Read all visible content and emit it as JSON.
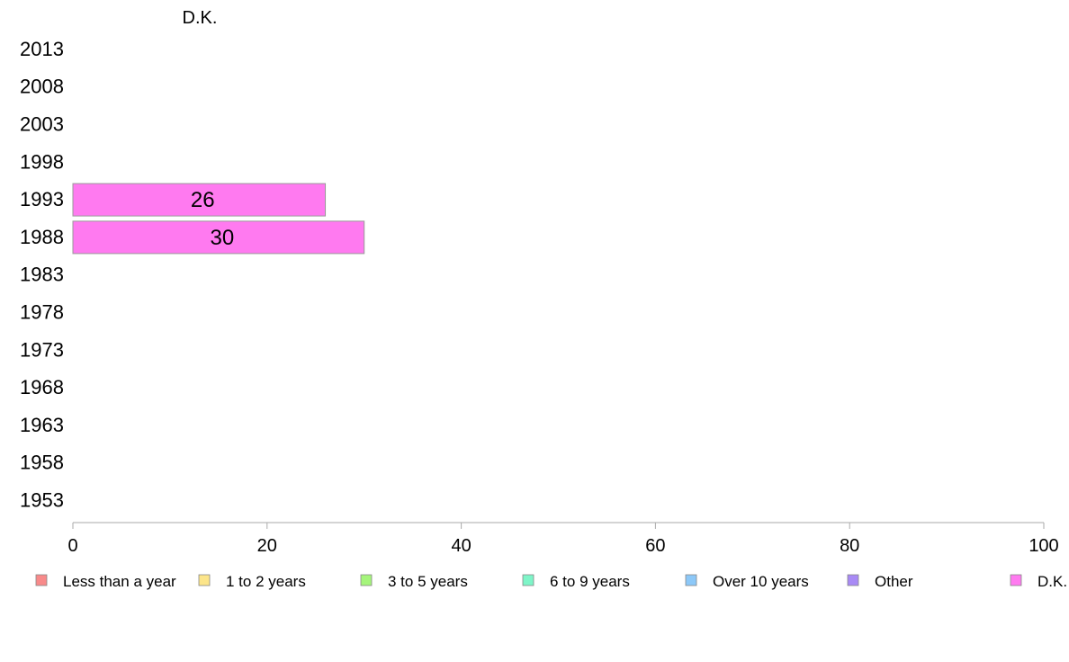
{
  "chart_data": {
    "type": "bar",
    "orientation": "horizontal",
    "stacked": true,
    "title": "D.K.",
    "categories": [
      "2013",
      "2008",
      "2003",
      "1998",
      "1993",
      "1988",
      "1983",
      "1978",
      "1973",
      "1968",
      "1963",
      "1958",
      "1953"
    ],
    "xlim": [
      0,
      100
    ],
    "x_ticks": [
      "0",
      "20",
      "40",
      "60",
      "80",
      "100"
    ],
    "grid": false,
    "legend_position": "bottom",
    "series": [
      {
        "name": "Less than a year",
        "color": "#f88a8a",
        "values": [
          null,
          null,
          null,
          null,
          null,
          null,
          null,
          null,
          null,
          null,
          null,
          null,
          null
        ]
      },
      {
        "name": "1 to 2 years",
        "color": "#fce58a",
        "values": [
          null,
          null,
          null,
          null,
          null,
          null,
          null,
          null,
          null,
          null,
          null,
          null,
          null
        ]
      },
      {
        "name": "3 to 5 years",
        "color": "#a5f57b",
        "values": [
          null,
          null,
          null,
          null,
          null,
          null,
          null,
          null,
          null,
          null,
          null,
          null,
          null
        ]
      },
      {
        "name": "6 to 9 years",
        "color": "#7ef5c8",
        "values": [
          null,
          null,
          null,
          null,
          null,
          null,
          null,
          null,
          null,
          null,
          null,
          null,
          null
        ]
      },
      {
        "name": "Over 10 years",
        "color": "#8cc8f8",
        "values": [
          null,
          null,
          null,
          null,
          null,
          null,
          null,
          null,
          null,
          null,
          null,
          null,
          null
        ]
      },
      {
        "name": "Other",
        "color": "#a88af5",
        "values": [
          null,
          null,
          null,
          null,
          null,
          null,
          null,
          null,
          null,
          null,
          null,
          null,
          null
        ]
      },
      {
        "name": "D.K.",
        "color": "#ff7af0",
        "values": [
          null,
          null,
          null,
          null,
          26,
          30,
          null,
          null,
          null,
          null,
          null,
          null,
          null
        ]
      }
    ],
    "data_labels": [
      "",
      "",
      "",
      "",
      "26",
      "30",
      "",
      "",
      "",
      "",
      "",
      "",
      ""
    ]
  }
}
